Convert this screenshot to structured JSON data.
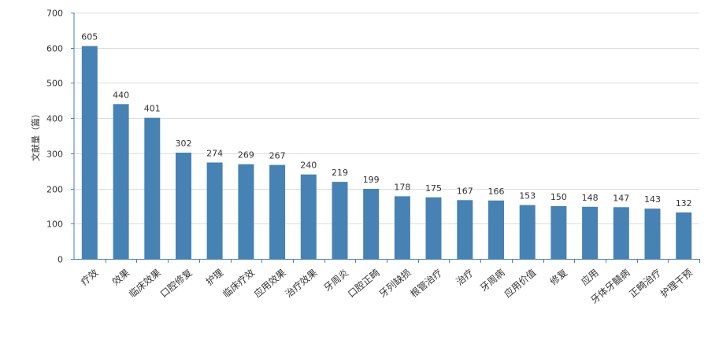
{
  "chart_data": {
    "type": "bar",
    "title": "",
    "xlabel": "",
    "ylabel": "文献量（篇）",
    "ylim": [
      0,
      700
    ],
    "yticks": [
      0,
      100,
      200,
      300,
      400,
      500,
      600,
      700
    ],
    "grid": true,
    "legend": "none",
    "bar_color": "#4682b4",
    "categories": [
      "疗效",
      "效果",
      "临床效果",
      "口腔修复",
      "护理",
      "临床疗效",
      "应用效果",
      "治疗效果",
      "牙周炎",
      "口腔正畸",
      "牙列缺损",
      "根管治疗",
      "治疗",
      "牙周病",
      "应用价值",
      "修复",
      "应用",
      "牙体牙髓病",
      "正畸治疗",
      "护理干预"
    ],
    "values": [
      605,
      440,
      401,
      302,
      274,
      269,
      267,
      240,
      219,
      199,
      178,
      175,
      167,
      166,
      153,
      150,
      148,
      147,
      143,
      132
    ]
  }
}
